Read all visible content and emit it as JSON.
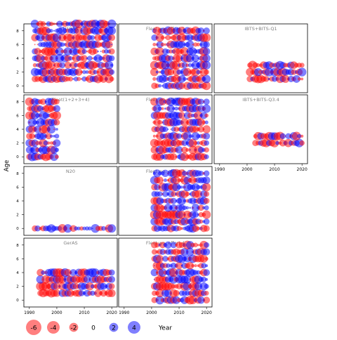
{
  "chart_data": {
    "type": "scatter",
    "xlabel": "Year",
    "ylabel": "Age",
    "x_ticks": [
      1990,
      2000,
      2010,
      2020
    ],
    "y_ticks": [
      0,
      2,
      4,
      6,
      8
    ],
    "xlim": [
      1988,
      2022
    ],
    "ylim": [
      -1,
      9
    ],
    "colors": {
      "positive": "#0000FF",
      "negative": "#FF0000"
    },
    "legend": {
      "placement": "bottom-left",
      "values": [
        -6,
        -4,
        -2,
        0,
        2,
        4
      ],
      "labels": [
        "-6",
        "-4",
        "-2",
        "0",
        "2",
        "4"
      ],
      "title": "Year"
    },
    "panels": [
      {
        "id": "heras",
        "label": "HERAS",
        "years": [
          1992,
          2020
        ],
        "ages": [
          1,
          9
        ],
        "seed": 11,
        "alt": true,
        "xticks": false,
        "yticks": true
      },
      {
        "id": "fleet-wo-effort-1",
        "label": "Fleet wo. effort 1",
        "years": [
          2001,
          2020
        ],
        "ages": [
          0,
          8
        ],
        "seed": 23,
        "alt": false,
        "xticks": false,
        "yticks": false
      },
      {
        "id": "ibts-bits-q1",
        "label": "IBTS+BITS-Q1",
        "years": [
          2001,
          2020
        ],
        "ages": [
          1,
          3
        ],
        "seed": 37,
        "alt": false,
        "xticks": false,
        "yticks": false
      },
      {
        "id": "fleet-1234",
        "label": "Fleet(1+2+3+4)",
        "years": [
          1990,
          2000
        ],
        "ages": [
          0,
          8
        ],
        "seed": 41,
        "alt": false,
        "xticks": false,
        "yticks": true
      },
      {
        "id": "fleet-wo-effort-2",
        "label": "Fleet wo. effort 2",
        "years": [
          2001,
          2020
        ],
        "ages": [
          0,
          8
        ],
        "seed": 53,
        "alt": false,
        "xticks": false,
        "yticks": false
      },
      {
        "id": "ibts-bits-q34",
        "label": "IBTS+BITS-Q3.4",
        "years": [
          2003,
          2020
        ],
        "ages": [
          2,
          3
        ],
        "seed": 67,
        "alt": false,
        "xticks": true,
        "yticks": false
      },
      {
        "id": "n20",
        "label": "N20",
        "years": [
          1992,
          2020
        ],
        "ages": [
          0,
          0
        ],
        "seed": 71,
        "alt": false,
        "xticks": false,
        "yticks": true
      },
      {
        "id": "fleet-wo-effort-3",
        "label": "Fleet wo. effort 3",
        "years": [
          2001,
          2020
        ],
        "ages": [
          0,
          8
        ],
        "seed": 83,
        "alt": false,
        "xticks": false,
        "yticks": false
      },
      {
        "id": "geras",
        "label": "GerAS",
        "years": [
          1994,
          2020
        ],
        "ages": [
          1,
          4
        ],
        "seed": 97,
        "alt": false,
        "xticks": true,
        "yticks": true
      },
      {
        "id": "fleet-wo-effort-4",
        "label": "Fleet wo. effort 4",
        "years": [
          2001,
          2020
        ],
        "ages": [
          0,
          8
        ],
        "seed": 101,
        "alt": false,
        "xticks": true,
        "yticks": false
      }
    ]
  }
}
